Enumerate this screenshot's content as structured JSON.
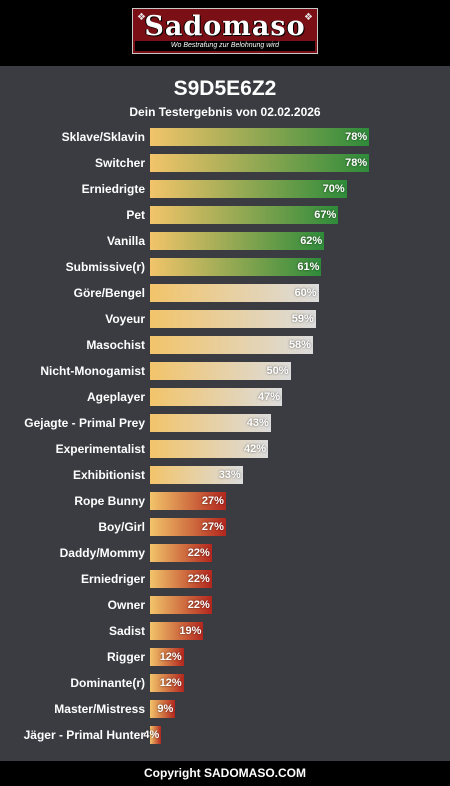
{
  "header": {
    "logo_text": "Sadomaso",
    "logo_tagline": "Wo Bestrafung zur Belohnung wird"
  },
  "title": "S9D5E6Z2",
  "subtitle": "Dein Testergebnis von 02.02.2026",
  "footer": "Copyright SADOMASO.COM",
  "colors": {
    "background": "#3a3c42",
    "bar_start": "#f2c46a",
    "bar_end_high": "#2e8b3a",
    "bar_end_mid": "#dcdcdc",
    "bar_end_low": "#b3261e"
  },
  "chart_data": {
    "type": "bar",
    "orientation": "horizontal",
    "xlim": [
      0,
      100
    ],
    "categories": [
      "Sklave/Sklavin",
      "Switcher",
      "Erniedrigte",
      "Pet",
      "Vanilla",
      "Submissive(r)",
      "Göre/Bengel",
      "Voyeur",
      "Masochist",
      "Nicht-Monogamist",
      "Ageplayer",
      "Gejagte - Primal Prey",
      "Experimentalist",
      "Exhibitionist",
      "Rope Bunny",
      "Boy/Girl",
      "Daddy/Mommy",
      "Erniedriger",
      "Owner",
      "Sadist",
      "Rigger",
      "Dominante(r)",
      "Master/Mistress",
      "Jäger - Primal Hunter"
    ],
    "values": [
      78,
      78,
      70,
      67,
      62,
      61,
      60,
      59,
      58,
      50,
      47,
      43,
      42,
      33,
      27,
      27,
      22,
      22,
      22,
      19,
      12,
      12,
      9,
      4
    ],
    "value_labels": [
      "78%",
      "78%",
      "70%",
      "67%",
      "62%",
      "61%",
      "60%",
      "59%",
      "58%",
      "50%",
      "47%",
      "43%",
      "42%",
      "33%",
      "27%",
      "27%",
      "22%",
      "22%",
      "22%",
      "19%",
      "12%",
      "12%",
      "9%",
      "4%"
    ]
  }
}
